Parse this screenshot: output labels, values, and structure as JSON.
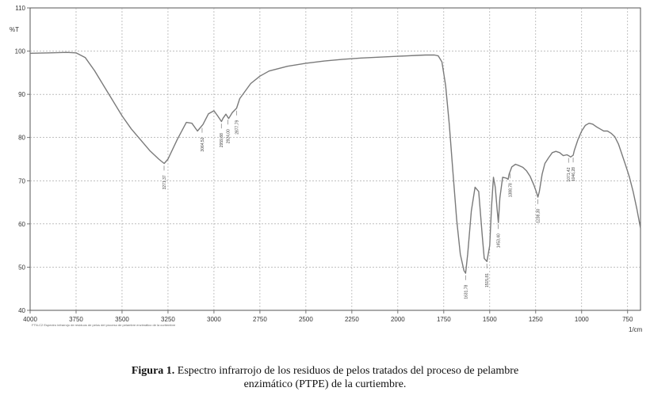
{
  "chart_data": {
    "type": "line",
    "ylabel": "%T",
    "xlabel_unit": "1/cm",
    "xlim": [
      4000,
      680
    ],
    "ylim": [
      40,
      110
    ],
    "x_ticks": [
      4000,
      3750,
      3500,
      3250,
      3000,
      2750,
      2500,
      2250,
      2000,
      1750,
      1500,
      1250,
      1000,
      750
    ],
    "x_tick_labels": [
      "4000",
      "3750",
      "3500",
      "3250",
      "3000",
      "2750",
      "2500",
      "2250",
      "2000",
      "1750",
      "1500",
      "1250",
      "1000",
      "750"
    ],
    "y_ticks": [
      40,
      50,
      60,
      70,
      80,
      90,
      100,
      110
    ],
    "y_tick_labels": [
      "40",
      "50",
      "60",
      "70",
      "80",
      "90",
      "100",
      "110"
    ],
    "grid": true,
    "series": [
      {
        "x": [
          4000,
          3900,
          3800,
          3750,
          3700,
          3650,
          3600,
          3550,
          3500,
          3450,
          3400,
          3350,
          3300,
          3271,
          3250,
          3200,
          3150,
          3120,
          3090,
          3060,
          3030,
          3000,
          2980,
          2959,
          2950,
          2935,
          2920,
          2900,
          2877,
          2860,
          2800,
          2750,
          2700,
          2600,
          2500,
          2400,
          2300,
          2200,
          2100,
          2000,
          1900,
          1850,
          1800,
          1780,
          1760,
          1740,
          1720,
          1700,
          1680,
          1660,
          1640,
          1631,
          1620,
          1600,
          1580,
          1560,
          1540,
          1530,
          1515,
          1500,
          1490,
          1480,
          1470,
          1460,
          1453,
          1445,
          1430,
          1410,
          1400,
          1395,
          1380,
          1360,
          1340,
          1320,
          1300,
          1280,
          1260,
          1245,
          1238,
          1230,
          1215,
          1200,
          1180,
          1160,
          1140,
          1120,
          1100,
          1080,
          1071,
          1060,
          1046,
          1040,
          1020,
          1000,
          980,
          960,
          940,
          920,
          900,
          880,
          860,
          840,
          820,
          800,
          780,
          760,
          740,
          720,
          700,
          680
        ],
        "y": [
          99.5,
          99.6,
          99.7,
          99.6,
          98.5,
          95.5,
          92,
          88.5,
          85,
          82,
          79.5,
          77,
          75,
          74,
          75,
          79.5,
          83.5,
          83.3,
          81.5,
          83,
          85.5,
          86.2,
          85,
          83.7,
          84.5,
          85.4,
          84.4,
          85.8,
          86.8,
          89,
          92.5,
          94.2,
          95.4,
          96.5,
          97.2,
          97.7,
          98.1,
          98.4,
          98.6,
          98.8,
          99,
          99.1,
          99.1,
          98.9,
          97.5,
          92,
          83,
          72,
          61,
          53,
          49.2,
          48.6,
          53,
          63,
          68.5,
          67.5,
          57,
          52,
          51.3,
          55,
          64,
          70.8,
          68.5,
          63.5,
          60.3,
          66,
          70.8,
          70.6,
          70.3,
          71.5,
          73.2,
          73.8,
          73.5,
          73.1,
          72.3,
          71,
          69,
          67.2,
          66.2,
          67.5,
          71.5,
          74,
          75.3,
          76.5,
          76.8,
          76.5,
          75.8,
          76,
          75.8,
          75.5,
          75.9,
          77,
          79.5,
          81.5,
          82.8,
          83.3,
          83.1,
          82.5,
          82,
          81.5,
          81.5,
          81,
          80.2,
          78.5,
          76,
          73.5,
          70.8,
          67.5,
          63.5,
          59
        ]
      }
    ],
    "peak_labels": [
      "3271,37",
      "3064,52",
      "2959,88",
      "2924,00",
      "2877,79",
      "1631,78",
      "1515,81",
      "1453,40",
      "1388,78",
      "1238,30",
      "1071,42",
      "1046,28"
    ],
    "footnote": "FTN-C2 Espectro infrarrojo de residuos de pelos del proceso de pelambre enzimático de la curtiembre"
  },
  "caption": {
    "label": "Figura 1.",
    "line1": "Espectro infrarrojo de los residuos de pelos tratados del proceso de pelambre",
    "line2": "enzimático (PTPE) de la curtiembre."
  },
  "colors": {
    "line": "#7a7a7a",
    "grid": "#9a9a9a",
    "frame": "#555555",
    "text": "#333333"
  }
}
